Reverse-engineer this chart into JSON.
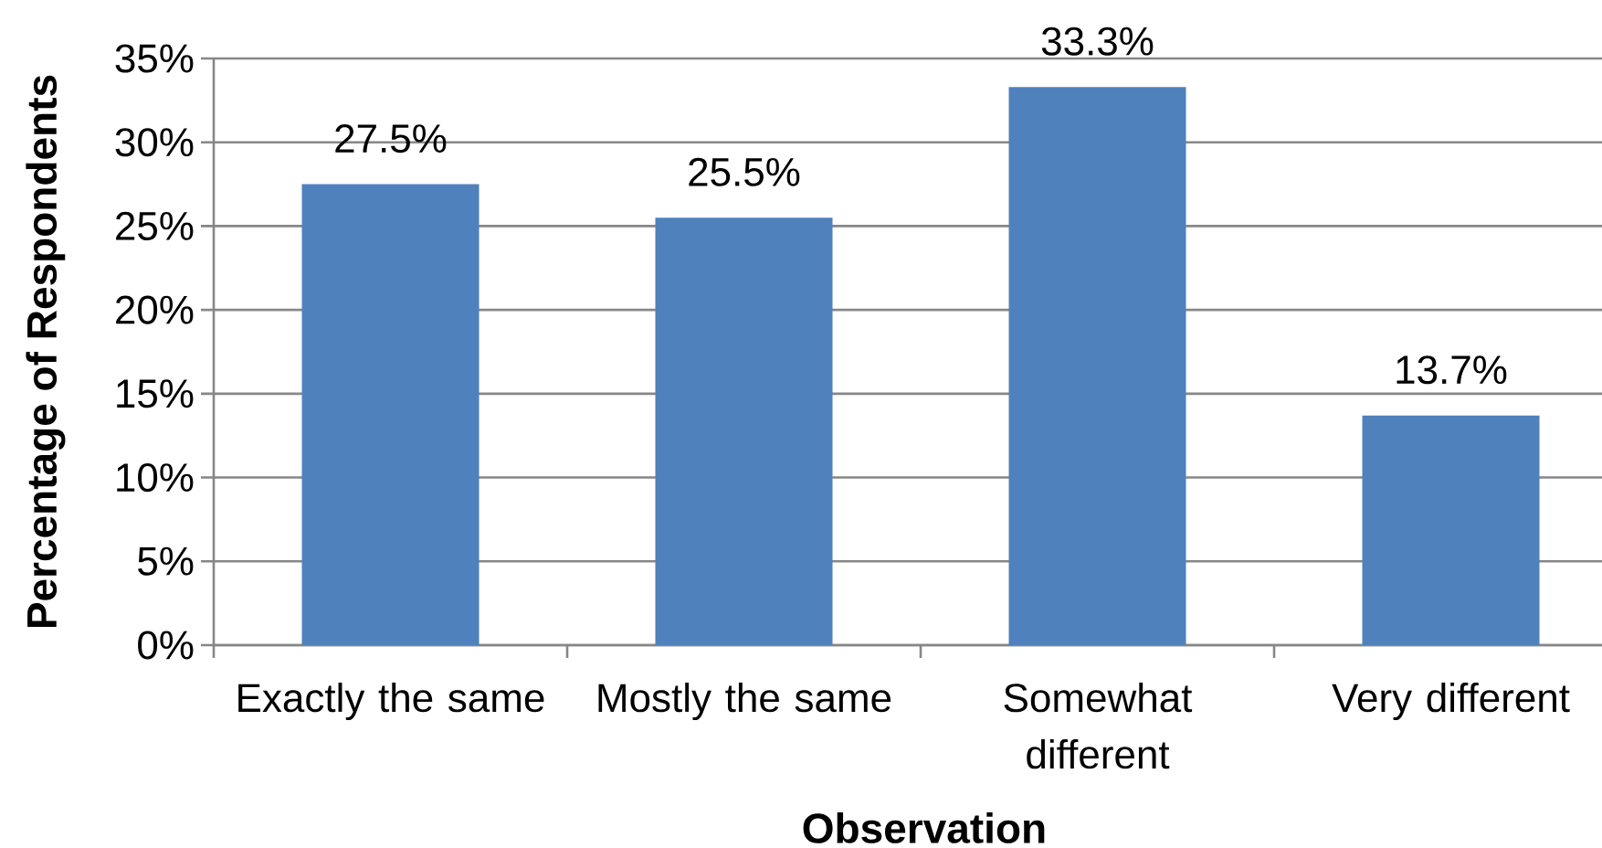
{
  "chart_data": {
    "type": "bar",
    "xlabel": "Observation",
    "ylabel": "Percentage of Respondents",
    "categories": [
      "Exactly the same",
      "Mostly the same",
      "Somewhat different",
      "Very different"
    ],
    "values": [
      27.5,
      25.5,
      33.3,
      13.7
    ],
    "value_labels": [
      "27.5%",
      "25.5%",
      "33.3%",
      "13.7%"
    ],
    "color": "#4f81bd",
    "ylim": [
      0,
      35
    ],
    "yticks": [
      {
        "value": 0,
        "label": "0%"
      },
      {
        "value": 5,
        "label": "5%"
      },
      {
        "value": 10,
        "label": "10%"
      },
      {
        "value": 15,
        "label": "15%"
      },
      {
        "value": 20,
        "label": "20%"
      },
      {
        "value": 25,
        "label": "25%"
      },
      {
        "value": 30,
        "label": "30%"
      },
      {
        "value": 35,
        "label": "35%"
      }
    ],
    "grid": "y"
  }
}
